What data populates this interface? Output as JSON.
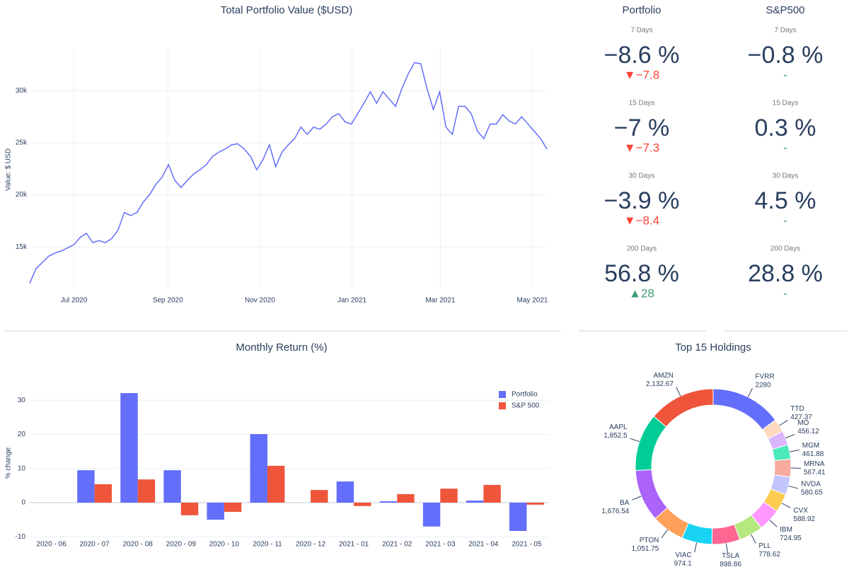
{
  "chart_data": [
    {
      "type": "line",
      "title": "Total Portfolio Value ($USD)",
      "y_label": "Value: $ USD",
      "color": "#636efa",
      "grid": true,
      "values": [
        11500,
        12900,
        13500,
        14100,
        14400,
        14600,
        14900,
        15200,
        15900,
        16300,
        15400,
        15600,
        15400,
        15800,
        16600,
        18300,
        18000,
        18300,
        19300,
        20000,
        21000,
        21700,
        22900,
        21400,
        20700,
        21400,
        22000,
        22400,
        22900,
        23700,
        24100,
        24400,
        24800,
        24900,
        24400,
        23700,
        22400,
        23400,
        24800,
        22700,
        24100,
        24800,
        25400,
        26500,
        25800,
        26500,
        26300,
        26800,
        27500,
        27800,
        27000,
        26800,
        27800,
        28800,
        29900,
        28800,
        29900,
        29200,
        28500,
        30200,
        31600,
        32700,
        32600,
        30200,
        28200,
        29900,
        26500,
        25800,
        28500,
        28500,
        27800,
        26100,
        25400,
        26800,
        26800,
        27700,
        27100,
        26800,
        27500,
        26800,
        26100,
        25400,
        24400
      ],
      "xlim": [
        0,
        82
      ],
      "xticks": [
        {
          "value": 7,
          "label": "Jul 2020"
        },
        {
          "value": 21.9,
          "label": "Sep 2020"
        },
        {
          "value": 36.5,
          "label": "Nov 2020"
        },
        {
          "value": 51.1,
          "label": "Jan 2021"
        },
        {
          "value": 65.1,
          "label": "Mar 2021"
        },
        {
          "value": 79.7,
          "label": "May 2021"
        }
      ],
      "ylim": [
        11000,
        34100
      ],
      "yticks": [
        {
          "value": 15000,
          "label": "15k"
        },
        {
          "value": 20000,
          "label": "20k"
        },
        {
          "value": 25000,
          "label": "25k"
        },
        {
          "value": 30000,
          "label": "30k"
        }
      ]
    },
    {
      "type": "bar",
      "title": "Monthly Return (%)",
      "y_label": "% change",
      "grid": true,
      "legend": "top-right",
      "categories": [
        "2020 - 06",
        "2020 - 07",
        "2020 - 08",
        "2020 - 09",
        "2020 - 10",
        "2020 - 11",
        "2020 - 12",
        "2021 - 01",
        "2021 - 02",
        "2021 - 03",
        "2021 - 04",
        "2021 - 05"
      ],
      "series": [
        {
          "name": "Portfolio",
          "color": "#636efa",
          "values": [
            null,
            9.5,
            32.1,
            9.5,
            -5.0,
            20.1,
            0,
            6.2,
            0.4,
            -7.0,
            0.6,
            -8.3
          ]
        },
        {
          "name": "S&P 500",
          "color": "#ef553b",
          "values": [
            null,
            5.4,
            6.8,
            -3.7,
            -2.7,
            10.8,
            3.7,
            -1.0,
            2.5,
            4.1,
            5.2,
            -0.6
          ]
        }
      ],
      "ylim": [
        -11.2,
        37.5
      ],
      "yticks": [
        -10,
        0,
        10,
        20,
        30
      ]
    },
    {
      "type": "pie",
      "title": "Top 15 Holdings",
      "hole": true,
      "labels": [
        "FVRR",
        "TTD",
        "MO",
        "MGM",
        "MRNA",
        "NVDA",
        "CVX",
        "IBM",
        "PLL",
        "TSLA",
        "VIAC",
        "PTON",
        "BA",
        "AAPL",
        "AMZN"
      ],
      "values": [
        2280,
        427.37,
        456.12,
        461.88,
        567.41,
        580.65,
        588.92,
        724.95,
        778.62,
        898.86,
        974.1,
        1051.75,
        1676.54,
        1852.5,
        2132.67
      ],
      "value_labels": [
        "2280",
        "427.37",
        "456.12",
        "461.88",
        "567.41",
        "580.65",
        "588.92",
        "724.95",
        "778.62",
        "898.86",
        "974.1",
        "1,051.75",
        "1,676.54",
        "1,852.5",
        "2,132.67"
      ],
      "colors": [
        "#636efa",
        "#ffd9bd",
        "#d9b5fc",
        "#4deab9",
        "#f7aa9d",
        "#c1c5fc",
        "#fecb52",
        "#ff97ff",
        "#b6e880",
        "#ff6692",
        "#19d3f3",
        "#ffa15a",
        "#ab63fa",
        "#00cc96",
        "#ef553b"
      ]
    }
  ],
  "indicators": {
    "columns": [
      "Portfolio",
      "S&P500"
    ],
    "rows": [
      {
        "period": "7 Days",
        "cells": [
          {
            "value": "−8.6 %",
            "delta": "▼−7.8"
          },
          {
            "value": "−0.8 %",
            "delta": "-"
          }
        ]
      },
      {
        "period": "15 Days",
        "cells": [
          {
            "value": "−7 %",
            "delta": "▼−7.3"
          },
          {
            "value": "0.3 %",
            "delta": "-"
          }
        ]
      },
      {
        "period": "30 Days",
        "cells": [
          {
            "value": "−3.9 %",
            "delta": "▼−8.4"
          },
          {
            "value": "4.5 %",
            "delta": "-"
          }
        ]
      },
      {
        "period": "200 Days",
        "cells": [
          {
            "value": "56.8 %",
            "delta": "▲28"
          },
          {
            "value": "28.8 %",
            "delta": "-"
          }
        ]
      }
    ]
  }
}
